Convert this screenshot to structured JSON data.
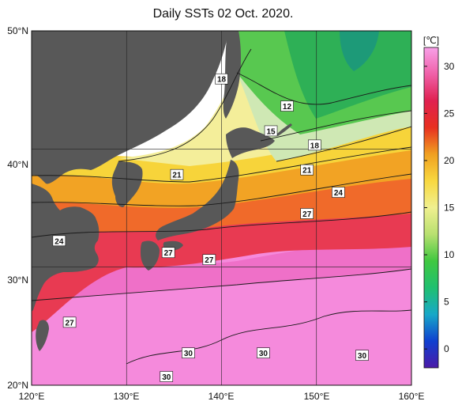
{
  "title": "Daily SSTs 02 Oct. 2020.",
  "colors": {
    "land": "#585858",
    "background": "#ffffff",
    "contour": "#1a1a1a",
    "grid": "#222222"
  },
  "colorbar": {
    "unit": "[℃]",
    "ticks": [
      "0",
      "5",
      "10",
      "15",
      "20",
      "25",
      "30"
    ],
    "stops": [
      "#4b1aa8",
      "#1040d0",
      "#18a8c8",
      "#20c070",
      "#40c840",
      "#b8e070",
      "#f0f090",
      "#f8d840",
      "#f0a020",
      "#e83020",
      "#e02050",
      "#f060a8",
      "#f8a0e8"
    ]
  },
  "axes": {
    "x_labels": [
      "120°E",
      "130°E",
      "140°E",
      "150°E",
      "160°E"
    ],
    "y_labels": [
      "50°N",
      "40°N",
      "30°N",
      "20°N"
    ]
  },
  "chart_data": {
    "type": "heatmap",
    "title": "Daily SSTs 02 Oct. 2020.",
    "xlim": [
      120,
      160
    ],
    "ylim": [
      20,
      50
    ],
    "unit": "℃",
    "color_range": [
      -2,
      32
    ],
    "contour_labels": [
      {
        "text": "18",
        "lon": 140.0,
        "lat": 45.9
      },
      {
        "text": "12",
        "lon": 146.9,
        "lat": 43.6
      },
      {
        "text": "15",
        "lon": 145.2,
        "lat": 41.5
      },
      {
        "text": "18",
        "lon": 149.8,
        "lat": 40.3
      },
      {
        "text": "21",
        "lon": 135.3,
        "lat": 37.8
      },
      {
        "text": "21",
        "lon": 149.0,
        "lat": 38.2
      },
      {
        "text": "24",
        "lon": 152.3,
        "lat": 36.3
      },
      {
        "text": "27",
        "lon": 149.0,
        "lat": 34.5
      },
      {
        "text": "24",
        "lon": 122.9,
        "lat": 32.2
      },
      {
        "text": "27",
        "lon": 134.4,
        "lat": 31.2
      },
      {
        "text": "27",
        "lon": 138.7,
        "lat": 30.6
      },
      {
        "text": "27",
        "lon": 124.0,
        "lat": 25.3
      },
      {
        "text": "30",
        "lon": 136.5,
        "lat": 22.7
      },
      {
        "text": "30",
        "lon": 144.4,
        "lat": 22.7
      },
      {
        "text": "30",
        "lon": 154.8,
        "lat": 22.5
      },
      {
        "text": "30",
        "lon": 134.2,
        "lat": 20.7
      }
    ]
  }
}
